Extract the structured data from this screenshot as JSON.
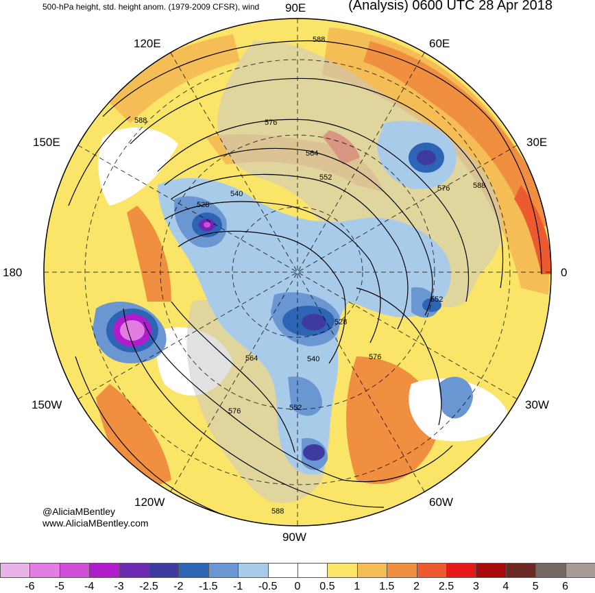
{
  "header": {
    "left_title": "500-hPa height, std. height anom. (1979-2009 CFSR), wind",
    "right_title": "(Analysis) 0600 UTC 28 Apr 2018"
  },
  "credits": {
    "twitter": "@AliciaMBentley",
    "website": "www.AliciaMBentley.com"
  },
  "map": {
    "projection": "north-polar-stereographic",
    "longitude_labels": [
      "90E",
      "60E",
      "30E",
      "0",
      "30W",
      "60W",
      "90W",
      "120W",
      "150W",
      "180",
      "150E",
      "120E"
    ],
    "contour_labels": [
      "588",
      "576",
      "564",
      "552",
      "540",
      "528",
      "528",
      "540",
      "552",
      "564",
      "576",
      "588",
      "552",
      "576",
      "588",
      "576",
      "588"
    ],
    "land_color": "#c8c8c8",
    "contour_color": "#000000"
  },
  "colorbar": {
    "ticks": [
      "-6",
      "-5",
      "-4",
      "-3",
      "-2.5",
      "-2",
      "-1.5",
      "-1",
      "-0.5",
      "0",
      "0.5",
      "1",
      "1.5",
      "2",
      "2.5",
      "3",
      "4",
      "5",
      "6"
    ],
    "colors": [
      "#e8b4e8",
      "#e27ee2",
      "#d14ed8",
      "#b01ccc",
      "#6b28b0",
      "#3f3aa0",
      "#2e64b4",
      "#6a96d2",
      "#a8cbea",
      "#ffffff",
      "#ffffff",
      "#fbe569",
      "#f4bd55",
      "#f08f40",
      "#ee5a30",
      "#e6181a",
      "#a80a0a",
      "#6a2a22",
      "#746866",
      "#a89a98"
    ]
  }
}
